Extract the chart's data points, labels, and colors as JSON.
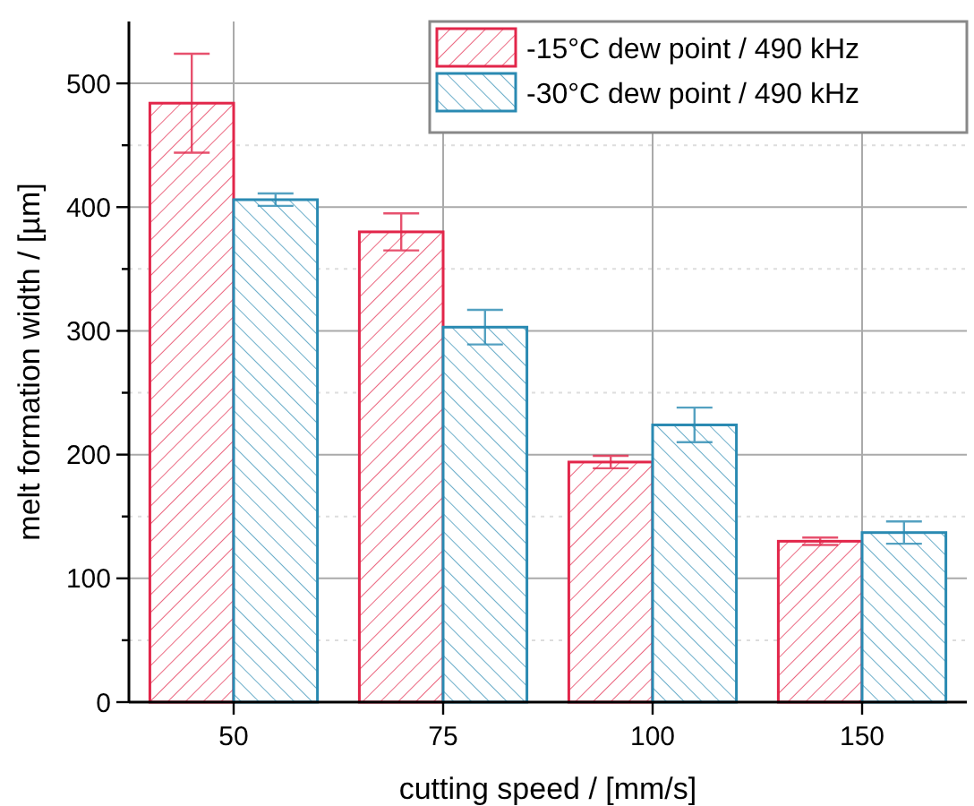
{
  "chart_data": {
    "type": "bar",
    "xlabel": "cutting speed  /  [mm/s]",
    "ylabel": "melt formation width  /  [µm]",
    "categories": [
      "50",
      "75",
      "100",
      "150"
    ],
    "series": [
      {
        "name": "-15°C dew point / 490 kHz",
        "color": "#e2264a",
        "values": [
          484,
          380,
          194,
          130
        ],
        "errors": [
          40,
          15,
          5,
          3
        ]
      },
      {
        "name": "-30°C dew point / 490 kHz",
        "color": "#2a8ab2",
        "values": [
          406,
          303,
          224,
          137
        ],
        "errors": [
          5,
          14,
          14,
          9
        ]
      }
    ],
    "ylim": [
      0,
      550
    ],
    "yticks": [
      0,
      {
        "value": 50,
        "label": null
      },
      100,
      {
        "value": 150,
        "label": null
      },
      200,
      {
        "value": 250,
        "label": null
      },
      300,
      {
        "value": 350,
        "label": null
      },
      400,
      {
        "value": 450,
        "label": null
      },
      500
    ],
    "grid": true,
    "legend": "top right"
  }
}
